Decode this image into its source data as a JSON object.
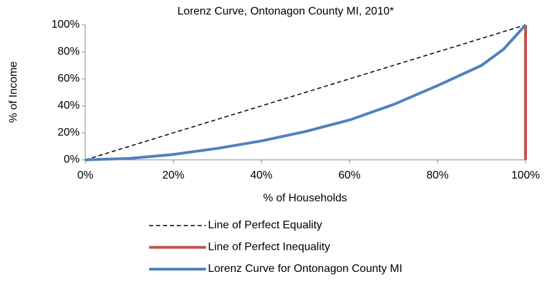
{
  "chart_data": {
    "type": "line",
    "title": "Lorenz Curve, Ontonagon County MI, 2010*",
    "x_label": "% of Households",
    "y_label": "% of Income",
    "xlim": [
      0,
      100
    ],
    "ylim": [
      0,
      100
    ],
    "xticks": [
      {
        "value": 0,
        "label": "0%"
      },
      {
        "value": 20,
        "label": "20%"
      },
      {
        "value": 40,
        "label": "40%"
      },
      {
        "value": 60,
        "label": "60%"
      },
      {
        "value": 80,
        "label": "80%"
      },
      {
        "value": 100,
        "label": "100%"
      }
    ],
    "yticks": [
      {
        "value": 0,
        "label": "0%"
      },
      {
        "value": 20,
        "label": "20%"
      },
      {
        "value": 40,
        "label": "40%"
      },
      {
        "value": 60,
        "label": "60%"
      },
      {
        "value": 80,
        "label": "80%"
      },
      {
        "value": 100,
        "label": "100%"
      }
    ],
    "grid": false,
    "legend": "bottom",
    "series": [
      {
        "name": "Line of Perfect Equality",
        "color": "#000000",
        "style": "dashed",
        "x": [
          0,
          100
        ],
        "values": [
          0,
          100
        ]
      },
      {
        "name": "Line of Perfect Inequality",
        "color": "#c0504d",
        "style": "solid",
        "x": [
          100,
          100
        ],
        "values": [
          0,
          100
        ]
      },
      {
        "name": "Lorenz Curve for Ontonagon County MI",
        "color": "#4f81bd",
        "style": "solid",
        "x": [
          0,
          10,
          20,
          30,
          40,
          50,
          60,
          70,
          80,
          90,
          95,
          100
        ],
        "values": [
          0,
          1,
          4,
          8.5,
          14,
          21,
          29.5,
          41,
          55,
          70,
          82,
          100
        ]
      }
    ]
  }
}
